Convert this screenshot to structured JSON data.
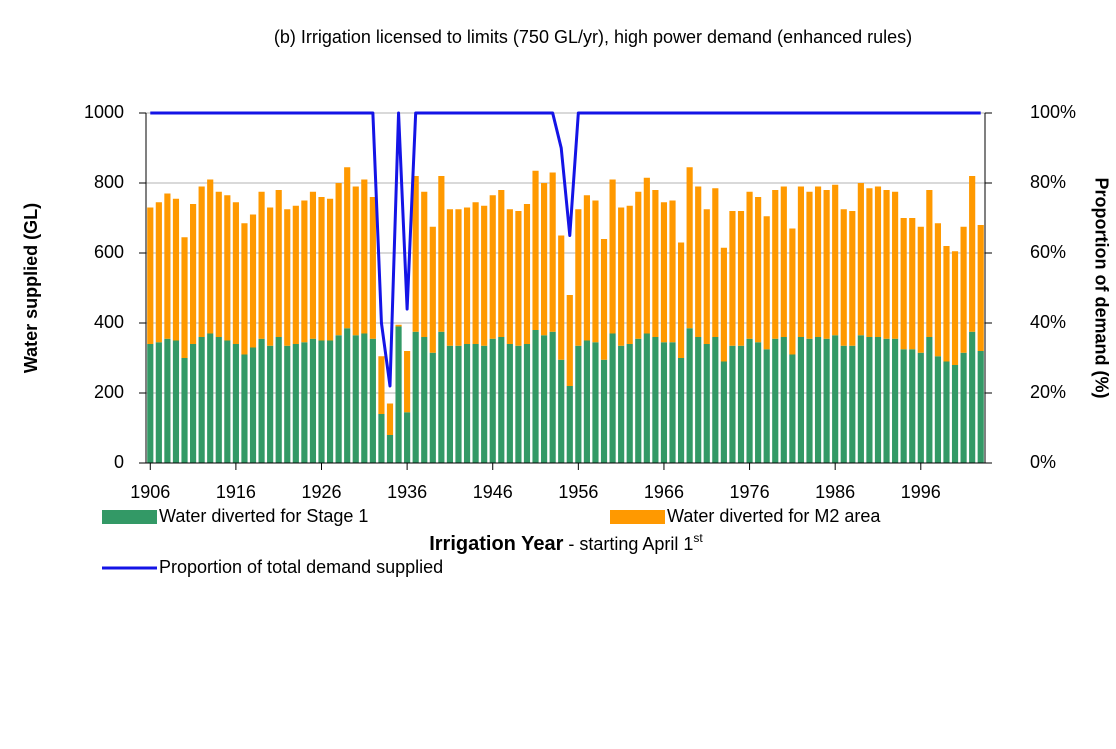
{
  "chart_data": {
    "type": "bar",
    "title": "(b) Irrigation licensed to limits (750 GL/yr), high power demand (enhanced rules)",
    "x_label": {
      "bold": "Irrigation Year",
      "rest": " - starting April 1",
      "sup": "st"
    },
    "y_label": "Water supplied (GL)",
    "y2_label": "Proportion of demand (%)",
    "stacked": true,
    "grid": true,
    "x": [
      1906,
      1907,
      1908,
      1909,
      1910,
      1911,
      1912,
      1913,
      1914,
      1915,
      1916,
      1917,
      1918,
      1919,
      1920,
      1921,
      1922,
      1923,
      1924,
      1925,
      1926,
      1927,
      1928,
      1929,
      1930,
      1931,
      1932,
      1933,
      1934,
      1935,
      1936,
      1937,
      1938,
      1939,
      1940,
      1941,
      1942,
      1943,
      1944,
      1945,
      1946,
      1947,
      1948,
      1949,
      1950,
      1951,
      1952,
      1953,
      1954,
      1955,
      1956,
      1957,
      1958,
      1959,
      1960,
      1961,
      1962,
      1963,
      1964,
      1965,
      1966,
      1967,
      1968,
      1969,
      1970,
      1971,
      1972,
      1973,
      1974,
      1975,
      1976,
      1977,
      1978,
      1979,
      1980,
      1981,
      1982,
      1983,
      1984,
      1985,
      1986,
      1987,
      1988,
      1989,
      1990,
      1991,
      1992,
      1993,
      1994,
      1995,
      1996,
      1997,
      1998,
      1999,
      2000,
      2001,
      2002,
      2003
    ],
    "xlim": [
      1905.5,
      2003.5
    ],
    "xticks": [
      1906,
      1916,
      1926,
      1936,
      1946,
      1956,
      1966,
      1976,
      1986,
      1996
    ],
    "ylim": [
      0,
      1000
    ],
    "yticks": [
      0,
      200,
      400,
      600,
      800,
      1000
    ],
    "y2lim": [
      0,
      100
    ],
    "y2ticks": [
      {
        "value": 0,
        "label": "0%"
      },
      {
        "value": 20,
        "label": "20%"
      },
      {
        "value": 40,
        "label": "40%"
      },
      {
        "value": 60,
        "label": "60%"
      },
      {
        "value": 80,
        "label": "80%"
      },
      {
        "value": 100,
        "label": "100%"
      }
    ],
    "series": [
      {
        "name": "Water diverted for Stage 1",
        "type": "bar",
        "color": "#339966",
        "values": [
          340,
          345,
          355,
          350,
          300,
          340,
          360,
          370,
          360,
          350,
          340,
          310,
          330,
          355,
          335,
          360,
          335,
          340,
          345,
          355,
          350,
          350,
          365,
          385,
          365,
          370,
          355,
          140,
          80,
          390,
          145,
          375,
          360,
          315,
          375,
          335,
          335,
          340,
          340,
          335,
          355,
          360,
          340,
          335,
          340,
          380,
          365,
          375,
          295,
          220,
          335,
          350,
          345,
          295,
          370,
          335,
          340,
          355,
          370,
          360,
          345,
          345,
          300,
          385,
          360,
          340,
          360,
          290,
          335,
          335,
          355,
          345,
          325,
          355,
          360,
          310,
          360,
          355,
          360,
          355,
          365,
          335,
          335,
          365,
          360,
          360,
          355,
          355,
          325,
          325,
          315,
          360,
          305,
          290,
          280,
          315,
          375,
          320
        ]
      },
      {
        "name": "Water diverted for M2 area",
        "type": "bar",
        "color": "#ff9900",
        "values": [
          390,
          400,
          415,
          405,
          345,
          400,
          430,
          440,
          415,
          415,
          405,
          375,
          380,
          420,
          395,
          420,
          390,
          395,
          405,
          420,
          410,
          405,
          435,
          460,
          425,
          440,
          405,
          165,
          90,
          5,
          175,
          445,
          415,
          360,
          445,
          390,
          390,
          390,
          405,
          400,
          410,
          420,
          385,
          385,
          400,
          455,
          435,
          455,
          355,
          260,
          390,
          415,
          405,
          345,
          440,
          395,
          395,
          420,
          445,
          420,
          400,
          405,
          330,
          460,
          430,
          385,
          425,
          325,
          385,
          385,
          420,
          415,
          380,
          425,
          430,
          360,
          430,
          420,
          430,
          425,
          430,
          390,
          385,
          435,
          425,
          430,
          425,
          420,
          375,
          375,
          360,
          420,
          380,
          330,
          325,
          360,
          445,
          360
        ]
      },
      {
        "name": "Proportion of total demand supplied",
        "type": "line",
        "axis": "y2",
        "color": "#1414e6",
        "values": [
          100,
          100,
          100,
          100,
          100,
          100,
          100,
          100,
          100,
          100,
          100,
          100,
          100,
          100,
          100,
          100,
          100,
          100,
          100,
          100,
          100,
          100,
          100,
          100,
          100,
          100,
          100,
          40,
          22,
          100,
          44,
          100,
          100,
          100,
          100,
          100,
          100,
          100,
          100,
          100,
          100,
          100,
          100,
          100,
          100,
          100,
          100,
          100,
          90,
          65,
          100,
          100,
          100,
          100,
          100,
          100,
          100,
          100,
          100,
          100,
          100,
          100,
          100,
          100,
          100,
          100,
          100,
          100,
          100,
          100,
          100,
          100,
          100,
          100,
          100,
          100,
          100,
          100,
          100,
          100,
          100,
          100,
          100,
          100,
          100,
          100,
          100,
          100,
          100,
          100,
          100,
          100,
          100,
          100,
          100,
          100,
          100,
          100
        ]
      }
    ]
  }
}
